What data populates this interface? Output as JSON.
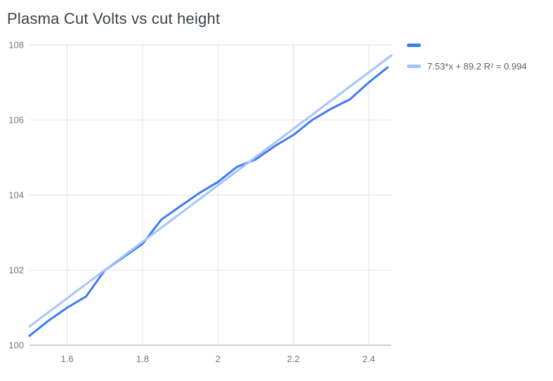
{
  "title": "Plasma Cut Volts vs cut height",
  "legend": {
    "position": "right",
    "items": [
      {
        "label": "",
        "series": "volts"
      },
      {
        "label": "7.53*x + 89.2 R² = 0.994",
        "series": "trendline"
      }
    ]
  },
  "chart_data": {
    "type": "line",
    "title": "Plasma Cut Volts vs cut height",
    "xlabel": "",
    "ylabel": "",
    "xlim": [
      1.5,
      2.46
    ],
    "ylim": [
      100,
      108
    ],
    "grid": true,
    "legend_position": "right",
    "style": {
      "background": "#ffffff",
      "grid_color": "#e3e3e3",
      "baseline_color": "#9e9e9e",
      "tick_color": "#757575",
      "title_color": "#3c4043",
      "legend_text_color": "#616161"
    },
    "x_ticks": [
      {
        "v": 1.6,
        "label": "1.6"
      },
      {
        "v": 1.8,
        "label": "1.8"
      },
      {
        "v": 2,
        "label": "2"
      },
      {
        "v": 2.2,
        "label": "2.2"
      },
      {
        "v": 2.4,
        "label": "2.4"
      }
    ],
    "y_ticks": [
      {
        "v": 100,
        "label": "100"
      },
      {
        "v": 102,
        "label": "102"
      },
      {
        "v": 104,
        "label": "104"
      },
      {
        "v": 106,
        "label": "106"
      },
      {
        "v": 108,
        "label": "108"
      }
    ],
    "series": [
      {
        "name": "volts",
        "color": "#3d7af5",
        "width": 3,
        "x": [
          1.5,
          1.55,
          1.6,
          1.65,
          1.7,
          1.75,
          1.8,
          1.85,
          1.9,
          1.95,
          2.0,
          2.05,
          2.1,
          2.15,
          2.2,
          2.25,
          2.3,
          2.35,
          2.4,
          2.45
        ],
        "y": [
          100.25,
          100.65,
          101.0,
          101.3,
          102.0,
          102.35,
          102.7,
          103.35,
          103.7,
          104.05,
          104.35,
          104.75,
          104.95,
          105.3,
          105.6,
          106.0,
          106.3,
          106.55,
          107.0,
          107.4
        ]
      },
      {
        "name": "trendline",
        "color": "#a5c4fa",
        "width": 3,
        "equation": "7.53*x + 89.2",
        "r_squared": 0.994,
        "x": [
          1.5,
          2.46
        ],
        "y": [
          100.5,
          107.72
        ]
      }
    ]
  }
}
